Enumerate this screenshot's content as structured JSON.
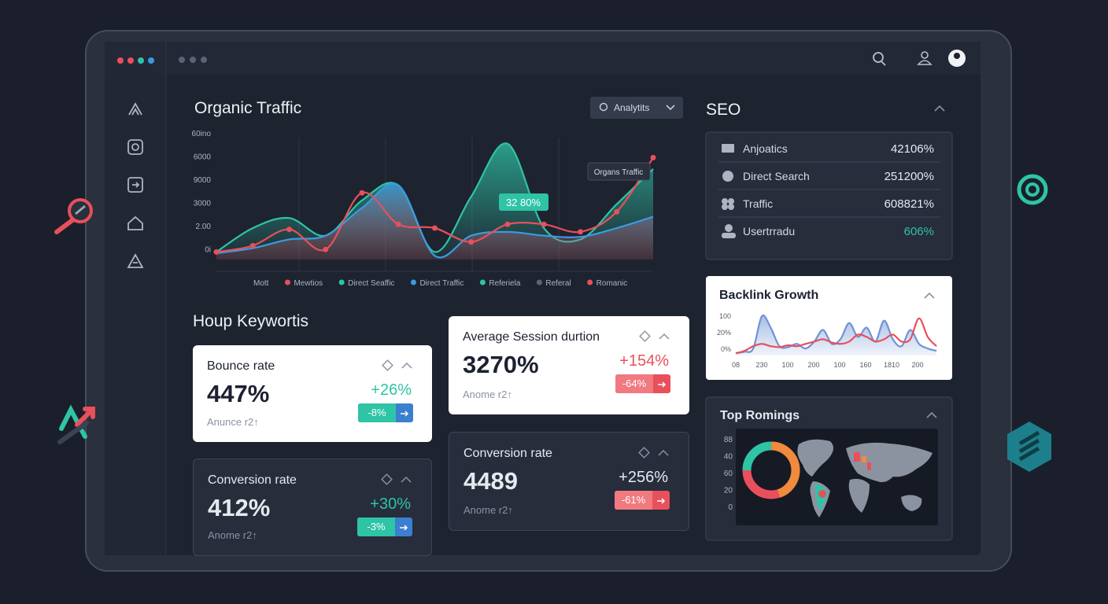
{
  "organic_traffic": {
    "title": "Organic Traffic",
    "dropdown": "Analytits",
    "y_axis_labels": [
      "60ino",
      "6000",
      "9000",
      "3000",
      "2.00",
      "0i"
    ],
    "tooltip": "Organs Traffic",
    "highlight": "32 80%",
    "chart": {
      "type": "area",
      "categories": [
        null,
        null,
        null,
        null,
        null,
        null,
        null,
        null,
        null,
        null,
        null,
        null,
        null
      ],
      "ylim": [
        0,
        100
      ],
      "series": [
        {
          "color": "#2ec4a5",
          "fill": true,
          "values": [
            6,
            25,
            33,
            19,
            47,
            59,
            6,
            50,
            92,
            25,
            16,
            44,
            72
          ]
        },
        {
          "color": "#3a9be0",
          "fill": true,
          "values": [
            5,
            9,
            16,
            19,
            41,
            59,
            3,
            19,
            22,
            19,
            18,
            25,
            34
          ]
        },
        {
          "color": "#e8505b",
          "fill": false,
          "markers": true,
          "values": [
            6,
            11,
            24,
            8,
            53,
            28,
            25,
            14,
            28,
            28,
            22,
            38,
            81
          ]
        }
      ]
    },
    "legend": [
      {
        "name": "Mott"
      },
      {
        "name": "Mewtios",
        "color": "#e8505b"
      },
      {
        "name": "Direct Seaffic",
        "color": "#2ec4a5"
      },
      {
        "name": "Direct Traffic",
        "color": "#3a9be0"
      },
      {
        "name": "Referiela",
        "color": "#2ec4a5"
      },
      {
        "name": "Referal",
        "color": "#5b6475"
      },
      {
        "name": "Romanic",
        "color": "#e8505b"
      }
    ]
  },
  "keywords": {
    "title": "Houp Keywortis",
    "cards": [
      {
        "title": "Bounce rate",
        "value": "447%",
        "change": "+26%",
        "footer": "Anunce r2↑",
        "badge": "-8%",
        "theme": "light",
        "change_color": "#2ec4a5",
        "badge_color": "#2ec4a5",
        "arrow_color": "#3a7fd0"
      },
      {
        "title": "Conversion rate",
        "value": "412%",
        "change": "+30%",
        "footer": "Anome r2↑",
        "badge": "-3%",
        "theme": "dark",
        "change_color": "#2ec4a5",
        "badge_color": "#2ec4a5",
        "arrow_color": "#3a7fd0"
      },
      {
        "title": "Average Session durtion",
        "value": "3270%",
        "change": "+154%",
        "footer": "Anome r2↑",
        "badge": "-64%",
        "theme": "light",
        "change_color": "#e8505b",
        "badge_color": "#f07a7f",
        "arrow_color": "#e8505b"
      },
      {
        "title": "Conversion rate",
        "value": "4489",
        "change": "+256%",
        "footer": "Anome r2↑",
        "badge": "-61%",
        "theme": "dark",
        "change_color": "#e6e9ef",
        "badge_color": "#f07a7f",
        "arrow_color": "#e8505b"
      }
    ]
  },
  "seo": {
    "title": "SEO",
    "highlight_color": "#2ec4a5",
    "rows": [
      {
        "label": "Anjoatics",
        "value": "42106%"
      },
      {
        "label": "Direct Search",
        "value": "251200%"
      },
      {
        "label": "Traffic",
        "value": "608821%"
      },
      {
        "label": "Usertrradu",
        "value": "606%",
        "highlight": true
      }
    ]
  },
  "backlink": {
    "title": "Backlink Growth",
    "y_axis_labels": [
      "100",
      "20%",
      "0%"
    ],
    "x_axis_labels": [
      "08",
      "230",
      "100",
      "200",
      "100",
      "160",
      "1810",
      "200"
    ],
    "chart": {
      "type": "area",
      "ylim": [
        0,
        100
      ],
      "series": [
        {
          "color": "#6f93d6",
          "fill": true,
          "values": [
            5,
            8,
            15,
            85,
            60,
            20,
            18,
            25,
            15,
            30,
            55,
            25,
            35,
            70,
            40,
            60,
            30,
            75,
            35,
            20,
            55,
            25,
            15,
            10
          ]
        },
        {
          "color": "#e8505b",
          "fill": false,
          "values": [
            5,
            10,
            20,
            25,
            20,
            18,
            22,
            20,
            25,
            30,
            35,
            28,
            25,
            30,
            45,
            40,
            30,
            35,
            45,
            30,
            35,
            80,
            40,
            20
          ]
        }
      ]
    }
  },
  "top_regions": {
    "title": "Top Romings",
    "y_axis_labels": [
      "88",
      "40",
      "60",
      "20",
      "0"
    ],
    "donut": {
      "type": "pie",
      "values": [
        25,
        45,
        30
      ],
      "colors": [
        "#2ec4a5",
        "#f08a3c",
        "#e8505b"
      ]
    }
  }
}
